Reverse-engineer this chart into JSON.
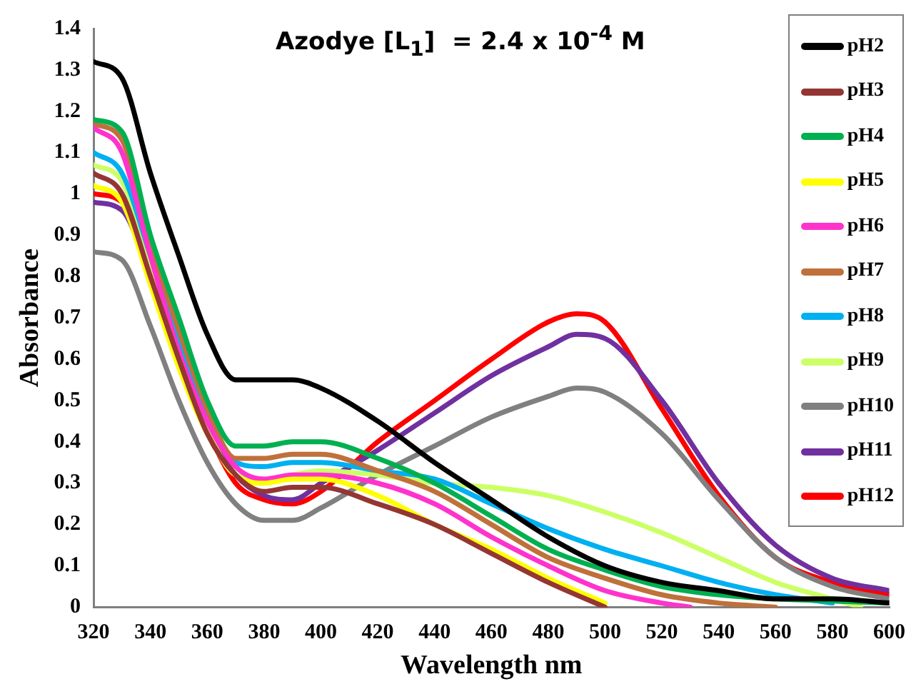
{
  "chart_data": {
    "type": "line",
    "title": "Azodye [L$_{1}$]  = 2.4 x 10$^{-4}$ M",
    "xlabel": "Wavelength nm",
    "ylabel": "Absorbance",
    "xlim": [
      320,
      600
    ],
    "xticks": [
      320,
      340,
      360,
      380,
      400,
      420,
      440,
      460,
      480,
      500,
      520,
      540,
      560,
      580,
      600
    ],
    "ylim": [
      0,
      1.4
    ],
    "yticks": [
      0,
      0.1,
      0.2,
      0.3,
      0.4,
      0.5,
      0.6,
      0.7,
      0.8,
      0.9,
      1,
      1.1,
      1.2,
      1.3,
      1.4
    ],
    "grid": false,
    "legend": "top right",
    "marker": "none",
    "line_style": "solid",
    "series": [
      {
        "name": "pH2",
        "color": "#000000",
        "x": [
          320,
          330,
          340,
          350,
          360,
          370,
          380,
          390,
          400,
          420,
          440,
          460,
          480,
          500,
          520,
          540,
          560,
          580,
          600
        ],
        "values": [
          1.32,
          1.28,
          1.05,
          0.85,
          0.66,
          0.55,
          0.55,
          0.55,
          0.53,
          0.45,
          0.35,
          0.26,
          0.17,
          0.1,
          0.06,
          0.04,
          0.02,
          0.02,
          0.01
        ]
      },
      {
        "name": "pH3",
        "color": "#943634",
        "x": [
          320,
          330,
          340,
          350,
          360,
          370,
          380,
          390,
          400,
          420,
          440,
          460,
          480,
          500
        ],
        "values": [
          1.05,
          1.0,
          0.8,
          0.6,
          0.42,
          0.32,
          0.28,
          0.29,
          0.29,
          0.25,
          0.2,
          0.13,
          0.06,
          0.0
        ]
      },
      {
        "name": "pH4",
        "color": "#00b050",
        "x": [
          320,
          330,
          340,
          350,
          360,
          370,
          380,
          390,
          400,
          420,
          440,
          460,
          480,
          500,
          520,
          540,
          560,
          580,
          600
        ],
        "values": [
          1.18,
          1.15,
          0.9,
          0.7,
          0.5,
          0.39,
          0.39,
          0.4,
          0.4,
          0.36,
          0.3,
          0.22,
          0.14,
          0.09,
          0.05,
          0.03,
          0.02,
          0.015,
          0.01
        ]
      },
      {
        "name": "pH5",
        "color": "#ffff00",
        "x": [
          320,
          330,
          340,
          350,
          360,
          370,
          380,
          390,
          400,
          420,
          440,
          460,
          480,
          500
        ],
        "values": [
          1.02,
          0.98,
          0.78,
          0.58,
          0.42,
          0.32,
          0.3,
          0.31,
          0.31,
          0.27,
          0.2,
          0.14,
          0.07,
          0.01
        ]
      },
      {
        "name": "pH6",
        "color": "#ff33cc",
        "x": [
          320,
          330,
          340,
          350,
          360,
          370,
          380,
          390,
          400,
          420,
          440,
          460,
          480,
          500,
          520,
          530
        ],
        "values": [
          1.16,
          1.1,
          0.85,
          0.62,
          0.45,
          0.34,
          0.31,
          0.32,
          0.32,
          0.3,
          0.25,
          0.17,
          0.1,
          0.04,
          0.01,
          0.0
        ]
      },
      {
        "name": "pH7",
        "color": "#c0703a",
        "x": [
          320,
          330,
          340,
          350,
          360,
          370,
          380,
          390,
          400,
          420,
          440,
          460,
          480,
          500,
          520,
          540,
          560
        ],
        "values": [
          1.17,
          1.13,
          0.88,
          0.67,
          0.48,
          0.36,
          0.36,
          0.37,
          0.37,
          0.33,
          0.28,
          0.2,
          0.12,
          0.07,
          0.03,
          0.01,
          0.0
        ]
      },
      {
        "name": "pH8",
        "color": "#00b0f0",
        "x": [
          320,
          330,
          340,
          350,
          360,
          370,
          380,
          390,
          400,
          420,
          440,
          460,
          480,
          500,
          520,
          540,
          560,
          580
        ],
        "values": [
          1.1,
          1.05,
          0.85,
          0.64,
          0.46,
          0.35,
          0.34,
          0.35,
          0.35,
          0.33,
          0.31,
          0.25,
          0.19,
          0.14,
          0.1,
          0.06,
          0.03,
          0.01
        ]
      },
      {
        "name": "pH9",
        "color": "#ccff66",
        "x": [
          320,
          330,
          340,
          350,
          360,
          370,
          380,
          390,
          400,
          420,
          440,
          460,
          480,
          500,
          520,
          540,
          560,
          580,
          590
        ],
        "values": [
          1.07,
          1.03,
          0.82,
          0.6,
          0.43,
          0.32,
          0.31,
          0.32,
          0.33,
          0.32,
          0.3,
          0.29,
          0.27,
          0.23,
          0.18,
          0.12,
          0.06,
          0.02,
          0.0
        ]
      },
      {
        "name": "pH10",
        "color": "#808080",
        "x": [
          320,
          330,
          340,
          350,
          360,
          370,
          380,
          390,
          400,
          420,
          440,
          460,
          480,
          490,
          500,
          520,
          540,
          560,
          580,
          600
        ],
        "values": [
          0.86,
          0.84,
          0.68,
          0.5,
          0.35,
          0.25,
          0.21,
          0.21,
          0.24,
          0.32,
          0.39,
          0.46,
          0.51,
          0.53,
          0.52,
          0.42,
          0.26,
          0.12,
          0.05,
          0.02
        ]
      },
      {
        "name": "pH11",
        "color": "#7030a0",
        "x": [
          320,
          330,
          340,
          350,
          360,
          370,
          380,
          390,
          400,
          420,
          440,
          460,
          480,
          490,
          500,
          520,
          540,
          560,
          580,
          600
        ],
        "values": [
          0.98,
          0.96,
          0.8,
          0.6,
          0.43,
          0.32,
          0.27,
          0.26,
          0.3,
          0.38,
          0.47,
          0.56,
          0.63,
          0.66,
          0.65,
          0.5,
          0.3,
          0.15,
          0.07,
          0.04
        ]
      },
      {
        "name": "pH12",
        "color": "#ff0000",
        "x": [
          320,
          330,
          340,
          350,
          360,
          370,
          380,
          390,
          400,
          420,
          440,
          460,
          480,
          490,
          500,
          520,
          540,
          560,
          580,
          600
        ],
        "values": [
          1.0,
          0.98,
          0.8,
          0.6,
          0.43,
          0.3,
          0.26,
          0.25,
          0.28,
          0.4,
          0.5,
          0.6,
          0.69,
          0.71,
          0.69,
          0.48,
          0.27,
          0.12,
          0.06,
          0.03
        ]
      }
    ]
  }
}
